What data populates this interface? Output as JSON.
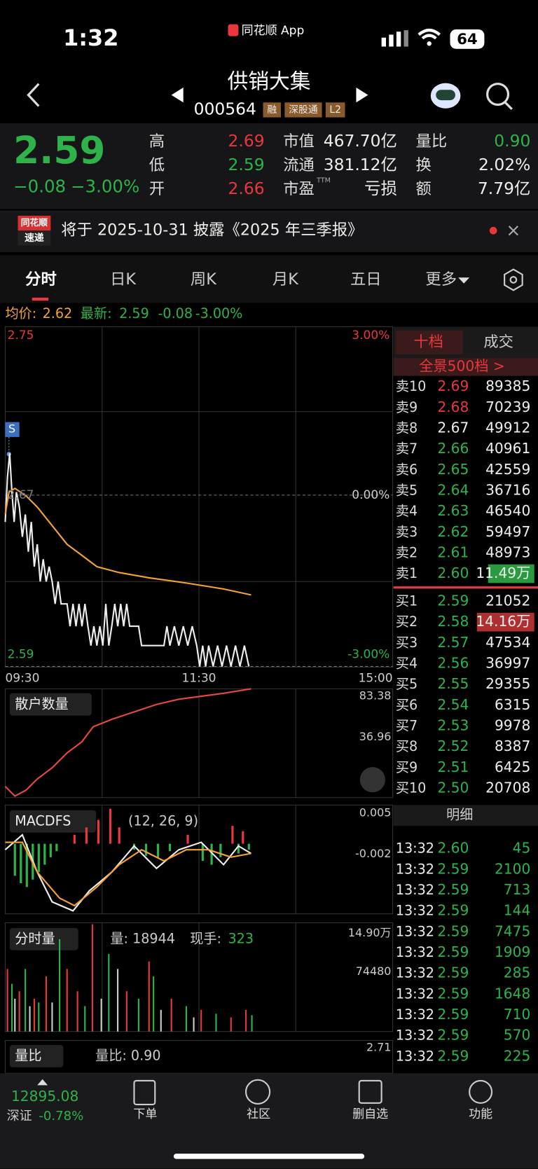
{
  "status": {
    "time": "1:32",
    "app": "同花顺 App",
    "battery": "64"
  },
  "header": {
    "title": "供销大集",
    "code": "000564",
    "tags": [
      "融",
      "深股通",
      "L2"
    ]
  },
  "quote": {
    "price": "2.59",
    "change": "−0.08",
    "pct": "−3.00%",
    "stats": [
      {
        "label": "高",
        "value": "2.69"
      },
      {
        "label": "低",
        "value": "2.59"
      },
      {
        "label": "开",
        "value": "2.66"
      },
      {
        "label": "市值",
        "value": "467.70亿"
      },
      {
        "label": "流通",
        "value": "381.12亿"
      },
      {
        "label": "市盈",
        "value": "亏损",
        "sup": "TTM"
      },
      {
        "label": "量比",
        "value": "0.90"
      },
      {
        "label": "换",
        "value": "2.02%"
      },
      {
        "label": "额",
        "value": "7.79亿"
      }
    ]
  },
  "notice": {
    "badge": [
      "同花顺",
      "速递"
    ],
    "text": "将于 2025-10-31 披露《2025 年三季报》"
  },
  "tabs": [
    "分时",
    "日K",
    "周K",
    "月K",
    "五日",
    "更多"
  ],
  "chart": {
    "avg_label": "均价:",
    "avg": "2.62",
    "latest_label": "最新:",
    "latest": "2.59",
    "change": "-0.08",
    "pct": "-3.00%",
    "price_top": "2.75",
    "pct_top": "3.00%",
    "price_mid": "2.67",
    "pct_mid": "0.00%",
    "price_bottom": "2.59",
    "pct_bottom": "-3.00%",
    "times": [
      "09:30",
      "11:30",
      "15:00"
    ],
    "marker": "S"
  },
  "retail": {
    "title": "散户数量",
    "top": "83.38",
    "mid": "36.96"
  },
  "macd": {
    "title": "MACDFS",
    "params": "(12, 26, 9)",
    "top": "0.005",
    "mid": "-0.002"
  },
  "volume": {
    "title": "分时量",
    "vol": "量: 18944",
    "hand_label": "现手:",
    "hand": "323",
    "top": "14.90万",
    "mid": "74480"
  },
  "ratio": {
    "title": "量比",
    "value": "量比: 0.90",
    "top": "2.71"
  },
  "book": {
    "tabs": [
      "十档",
      "成交"
    ],
    "panorama": "全景500档 >",
    "sell": [
      [
        "卖10",
        "2.69",
        "89385"
      ],
      [
        "卖9",
        "2.68",
        "70239"
      ],
      [
        "卖8",
        "2.67",
        "49912"
      ],
      [
        "卖7",
        "2.66",
        "40961"
      ],
      [
        "卖6",
        "2.65",
        "42559"
      ],
      [
        "卖5",
        "2.64",
        "36716"
      ],
      [
        "卖4",
        "2.63",
        "46540"
      ],
      [
        "卖3",
        "2.62",
        "59497"
      ],
      [
        "卖2",
        "2.61",
        "48973"
      ],
      [
        "卖1",
        "2.60",
        "11.49万"
      ]
    ],
    "buy": [
      [
        "买1",
        "2.59",
        "21052"
      ],
      [
        "买2",
        "2.58",
        "14.16万"
      ],
      [
        "买3",
        "2.57",
        "47534"
      ],
      [
        "买4",
        "2.56",
        "36997"
      ],
      [
        "买5",
        "2.55",
        "29355"
      ],
      [
        "买6",
        "2.54",
        "6315"
      ],
      [
        "买7",
        "2.53",
        "9978"
      ],
      [
        "买8",
        "2.52",
        "8387"
      ],
      [
        "买9",
        "2.51",
        "6425"
      ],
      [
        "买10",
        "2.50",
        "20708"
      ]
    ]
  },
  "details": {
    "title": "明细",
    "rows": [
      [
        "13:32",
        "2.60",
        "45"
      ],
      [
        "13:32",
        "2.59",
        "2100"
      ],
      [
        "13:32",
        "2.59",
        "713"
      ],
      [
        "13:32",
        "2.59",
        "144"
      ],
      [
        "13:32",
        "2.59",
        "7475"
      ],
      [
        "13:32",
        "2.59",
        "1909"
      ],
      [
        "13:32",
        "2.59",
        "285"
      ],
      [
        "13:32",
        "2.59",
        "1648"
      ],
      [
        "13:32",
        "2.59",
        "710"
      ],
      [
        "13:32",
        "2.59",
        "570"
      ],
      [
        "13:32",
        "2.59",
        "225"
      ]
    ]
  },
  "footer": {
    "index": "12895.08",
    "market": "深证",
    "pct": "-0.78%",
    "nav": [
      "下单",
      "社区",
      "删自选",
      "功能"
    ]
  }
}
